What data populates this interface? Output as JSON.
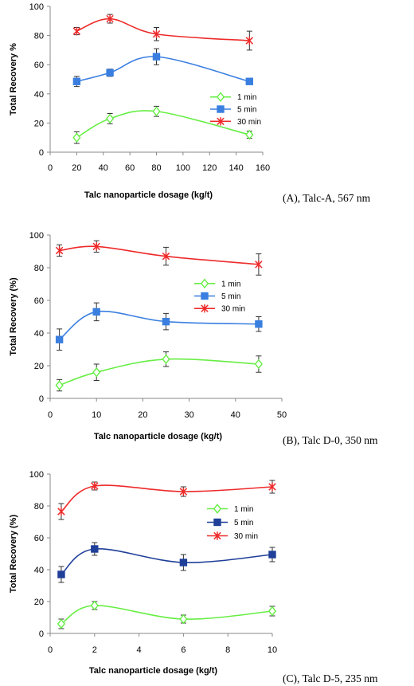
{
  "chart_data": [
    {
      "type": "line",
      "xlabel": "Talc nanoparticle dosage (kg/t)",
      "ylabel": "Total Recovery %",
      "caption": "(A), Talc-A, 567 nm",
      "xlim": [
        0,
        160
      ],
      "ylim": [
        0,
        100
      ],
      "xticks": [
        0,
        20,
        40,
        60,
        80,
        100,
        120,
        140,
        160
      ],
      "yticks": [
        0,
        20,
        40,
        60,
        80,
        100
      ],
      "grid": false,
      "legend_position": "right",
      "series": [
        {
          "name": "1 min",
          "color": "#66ee44",
          "marker": "diamond",
          "x": [
            20,
            45,
            80,
            150
          ],
          "y": [
            10,
            23,
            28,
            12
          ],
          "err": [
            4,
            3.5,
            3.5,
            2.5
          ]
        },
        {
          "name": "5 min",
          "color": "#3a7fe0",
          "marker": "square",
          "x": [
            20,
            45,
            80,
            150
          ],
          "y": [
            48.5,
            54.5,
            65.5,
            48.5
          ],
          "err": [
            3.5,
            2.5,
            5.5,
            0
          ]
        },
        {
          "name": "30 min",
          "color": "#ee2a2a",
          "marker": "star",
          "x": [
            20,
            45,
            80,
            150
          ],
          "y": [
            83,
            91.5,
            81,
            76.5
          ],
          "err": [
            2.5,
            3,
            4.5,
            6.5
          ]
        }
      ]
    },
    {
      "type": "line",
      "xlabel": "Talc nanoparticle dosage (kg/t)",
      "ylabel": "Total Recovery (%)",
      "caption": "(B), Talc D-0, 350 nm",
      "xlim": [
        0,
        50
      ],
      "ylim": [
        0,
        100
      ],
      "xticks": [
        0,
        10,
        20,
        30,
        40,
        50
      ],
      "yticks": [
        0,
        20,
        40,
        60,
        80,
        100
      ],
      "grid": false,
      "legend_position": "right",
      "series": [
        {
          "name": "1 min",
          "color": "#66ee44",
          "marker": "diamond",
          "x": [
            2,
            10,
            25,
            45
          ],
          "y": [
            8,
            16,
            24,
            21
          ],
          "err": [
            3.5,
            5,
            4.5,
            5
          ]
        },
        {
          "name": "5 min",
          "color": "#3a7fe0",
          "marker": "square",
          "x": [
            2,
            10,
            25,
            45
          ],
          "y": [
            36,
            53,
            47,
            45.5
          ],
          "err": [
            6.5,
            5.5,
            5,
            4.5
          ]
        },
        {
          "name": "30 min",
          "color": "#ee2a2a",
          "marker": "star",
          "x": [
            2,
            10,
            25,
            45
          ],
          "y": [
            90.5,
            93,
            87,
            82
          ],
          "err": [
            3.5,
            3.5,
            5.5,
            6.5
          ]
        }
      ]
    },
    {
      "type": "line",
      "xlabel": "Talc nanoparticle dosage (kg/t)",
      "ylabel": "Total Recovery (%)",
      "caption": "(C), Talc D-5, 235 nm",
      "xlim": [
        0,
        10
      ],
      "ylim": [
        0,
        100
      ],
      "xticks": [
        0,
        2,
        4,
        6,
        8,
        10
      ],
      "yticks": [
        0,
        20,
        40,
        60,
        80,
        100
      ],
      "grid": false,
      "legend_position": "right",
      "series": [
        {
          "name": "1 min",
          "color": "#66ee44",
          "marker": "diamond",
          "x": [
            0.5,
            2,
            6,
            10
          ],
          "y": [
            6,
            17.5,
            9,
            14
          ],
          "err": [
            3,
            2.5,
            2.5,
            3
          ]
        },
        {
          "name": "5 min",
          "color": "#1f3f99",
          "marker": "square",
          "x": [
            0.5,
            2,
            6,
            10
          ],
          "y": [
            37,
            53,
            44.5,
            49.5
          ],
          "err": [
            5,
            4,
            5,
            4.5
          ]
        },
        {
          "name": "30 min",
          "color": "#ee2a2a",
          "marker": "star",
          "x": [
            0.5,
            2,
            6,
            10
          ],
          "y": [
            76.5,
            92.5,
            89,
            92
          ],
          "err": [
            5,
            2.5,
            3,
            4
          ]
        }
      ]
    }
  ]
}
